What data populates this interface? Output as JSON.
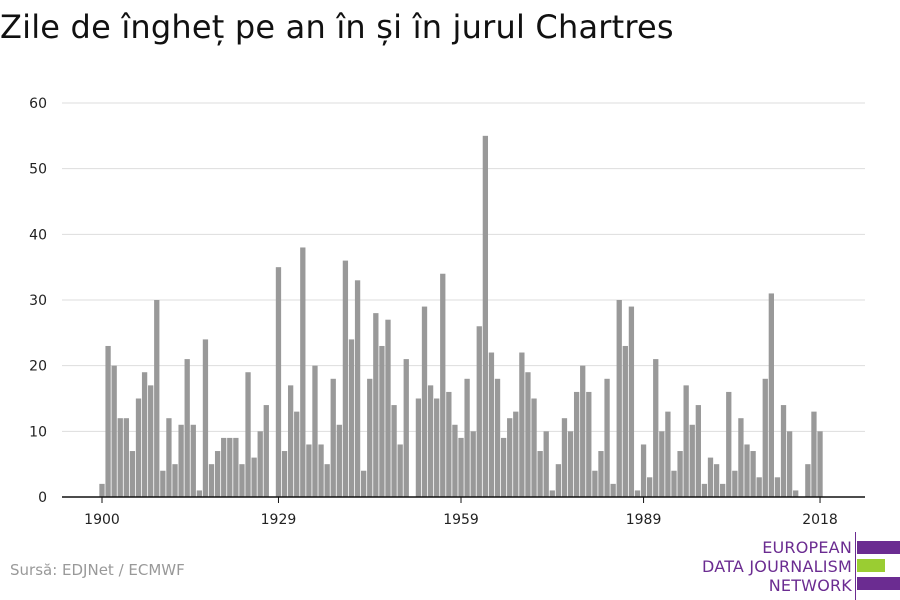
{
  "title": "Zile de îngheț pe an în și în jurul Chartres",
  "source": "Sursă: EDJNet / ECMWF",
  "logo": {
    "lines": [
      "EUROPEAN",
      "DATA JOURNALISM",
      "NETWORK"
    ],
    "colors": {
      "purple": "#6b2c91",
      "green": "#9acd32"
    }
  },
  "chart_data": {
    "type": "bar",
    "title": "Zile de îngheț pe an în și în jurul Chartres",
    "xlabel": "",
    "ylabel": "",
    "ylim": [
      0,
      60
    ],
    "yticks": [
      0,
      10,
      20,
      30,
      40,
      50,
      60
    ],
    "xticks": [
      1900,
      1929,
      1959,
      1989,
      2018
    ],
    "x_range": [
      1900,
      2018
    ],
    "bar_color": "#999999",
    "grid": true,
    "x": [
      1900,
      1901,
      1902,
      1903,
      1904,
      1905,
      1906,
      1907,
      1908,
      1909,
      1910,
      1911,
      1912,
      1913,
      1914,
      1915,
      1916,
      1917,
      1918,
      1919,
      1920,
      1921,
      1922,
      1923,
      1924,
      1925,
      1926,
      1927,
      1928,
      1929,
      1930,
      1931,
      1932,
      1933,
      1934,
      1935,
      1936,
      1937,
      1938,
      1939,
      1940,
      1941,
      1942,
      1943,
      1944,
      1945,
      1946,
      1947,
      1948,
      1949,
      1950,
      1951,
      1952,
      1953,
      1954,
      1955,
      1956,
      1957,
      1958,
      1959,
      1960,
      1961,
      1962,
      1963,
      1964,
      1965,
      1966,
      1967,
      1968,
      1969,
      1970,
      1971,
      1972,
      1973,
      1974,
      1975,
      1976,
      1977,
      1978,
      1979,
      1980,
      1981,
      1982,
      1983,
      1984,
      1985,
      1986,
      1987,
      1988,
      1989,
      1990,
      1991,
      1992,
      1993,
      1994,
      1995,
      1996,
      1997,
      1998,
      1999,
      2000,
      2001,
      2002,
      2003,
      2004,
      2005,
      2006,
      2007,
      2008,
      2009,
      2010,
      2011,
      2012,
      2013,
      2014,
      2015,
      2016,
      2017,
      2018
    ],
    "values": [
      2,
      23,
      20,
      12,
      12,
      7,
      15,
      19,
      17,
      30,
      4,
      12,
      5,
      11,
      21,
      11,
      1,
      24,
      5,
      7,
      9,
      9,
      9,
      5,
      19,
      6,
      10,
      14,
      0,
      35,
      7,
      17,
      13,
      38,
      8,
      20,
      8,
      5,
      18,
      11,
      36,
      24,
      33,
      4,
      18,
      28,
      23,
      27,
      14,
      8,
      21,
      0,
      15,
      29,
      17,
      15,
      34,
      16,
      11,
      9,
      18,
      10,
      26,
      55,
      22,
      18,
      9,
      12,
      13,
      22,
      19,
      15,
      7,
      10,
      1,
      5,
      12,
      10,
      16,
      20,
      16,
      4,
      7,
      18,
      2,
      30,
      23,
      29,
      1,
      8,
      3,
      21,
      10,
      13,
      4,
      7,
      17,
      11,
      14,
      2,
      6,
      5,
      2,
      16,
      4,
      12,
      8,
      7,
      3,
      18,
      31,
      3,
      14,
      10,
      1,
      0,
      5,
      13,
      10
    ]
  }
}
